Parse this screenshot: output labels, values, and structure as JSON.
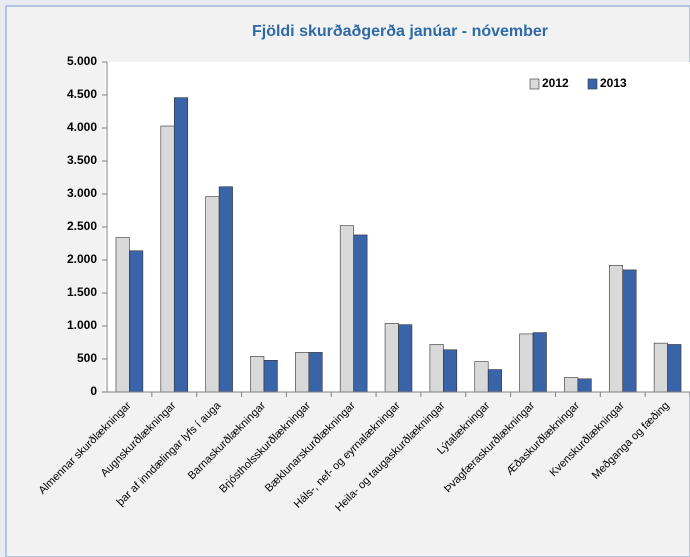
{
  "chart_data": {
    "type": "bar",
    "title": "Fjöldi skurðaðgerða janúar - nóvember",
    "categories": [
      "Almennar skurðlækningar",
      "Augnskurðlækningar",
      "þar af inndælingar lyfs í auga",
      "Barnaskurðlækningar",
      "Brjóstholsskurðlækningar",
      "Bæklunarskurðlækningar",
      "Háls-, nef- og eyrnalækningar",
      "Heila- og taugaskurðlækningar",
      "Lýtalækningar",
      "Þvagfæraskurðlækningar",
      "Æðaskurðlækningar",
      "Kvenskurðlækningar",
      "Meðganga og fæðing"
    ],
    "series": [
      {
        "name": "2012",
        "color": "#d9d9d9",
        "values": [
          2340,
          4030,
          2960,
          540,
          600,
          2520,
          1040,
          720,
          460,
          880,
          220,
          1920,
          740
        ]
      },
      {
        "name": "2013",
        "color": "#3a64a8",
        "values": [
          2140,
          4460,
          3110,
          480,
          600,
          2380,
          1020,
          640,
          340,
          900,
          200,
          1850,
          720
        ]
      }
    ],
    "ylim": [
      0,
      5000
    ],
    "yticks": [
      0,
      500,
      {
        "value": 1000,
        "label": "1.000"
      },
      {
        "value": 1500,
        "label": "1.500"
      },
      {
        "value": 2000,
        "label": "2.000"
      },
      {
        "value": 2500,
        "label": "2.500"
      },
      {
        "value": 3000,
        "label": "3.000"
      },
      {
        "value": 3500,
        "label": "3.500"
      },
      {
        "value": 4000,
        "label": "4.000"
      },
      {
        "value": 4500,
        "label": "4.500"
      },
      {
        "value": 5000,
        "label": "5.000"
      }
    ],
    "legend": "top-right",
    "grid": false
  }
}
